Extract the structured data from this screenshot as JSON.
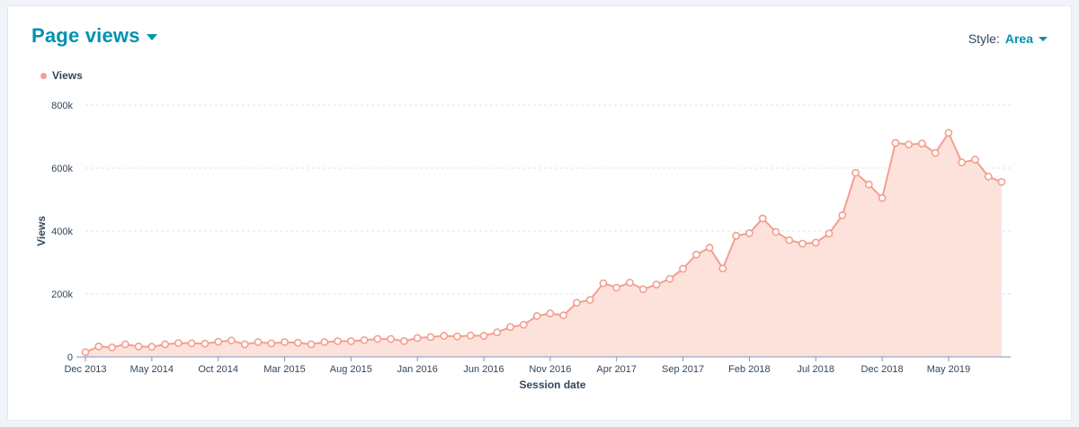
{
  "header": {
    "title": "Page views"
  },
  "style_control": {
    "label": "Style:",
    "value": "Area"
  },
  "colors": {
    "accent": "#0091ae",
    "series": "#f2a08e",
    "fill": "#fde2dc",
    "text": "#33475b",
    "grid": "#dfe3eb"
  },
  "chart_data": {
    "type": "area",
    "xlabel": "Session date",
    "ylabel": "Views",
    "ylim": [
      0,
      800000
    ],
    "yticks": [
      0,
      200000,
      400000,
      600000,
      800000
    ],
    "ytick_labels": [
      "0",
      "200k",
      "400k",
      "600k",
      "800k"
    ],
    "xtick_labels": [
      "Dec 2013",
      "May 2014",
      "Oct 2014",
      "Mar 2015",
      "Aug 2015",
      "Jan 2016",
      "Jun 2016",
      "Nov 2016",
      "Apr 2017",
      "Sep 2017",
      "Feb 2018",
      "Jul 2018",
      "Dec 2018",
      "May 2019"
    ],
    "x_start": "2013-12",
    "x_end": "2019-09",
    "grid": true,
    "legend_position": "top-left",
    "series": [
      {
        "name": "Views",
        "values": [
          15000,
          33000,
          30000,
          40000,
          33000,
          32000,
          40000,
          44000,
          43000,
          42000,
          48000,
          52000,
          40000,
          47000,
          43000,
          47000,
          45000,
          40000,
          47000,
          50000,
          50000,
          53000,
          57000,
          57000,
          50000,
          60000,
          63000,
          67000,
          65000,
          68000,
          67000,
          78000,
          95000,
          102000,
          130000,
          138000,
          132000,
          172000,
          181000,
          234000,
          220000,
          236000,
          215000,
          230000,
          248000,
          280000,
          325000,
          347000,
          281000,
          385000,
          393000,
          440000,
          397000,
          371000,
          360000,
          363000,
          392000,
          450000,
          585000,
          548000,
          505000,
          680000,
          675000,
          678000,
          648000,
          712000,
          618000,
          627000,
          573000,
          556000
        ]
      }
    ]
  }
}
